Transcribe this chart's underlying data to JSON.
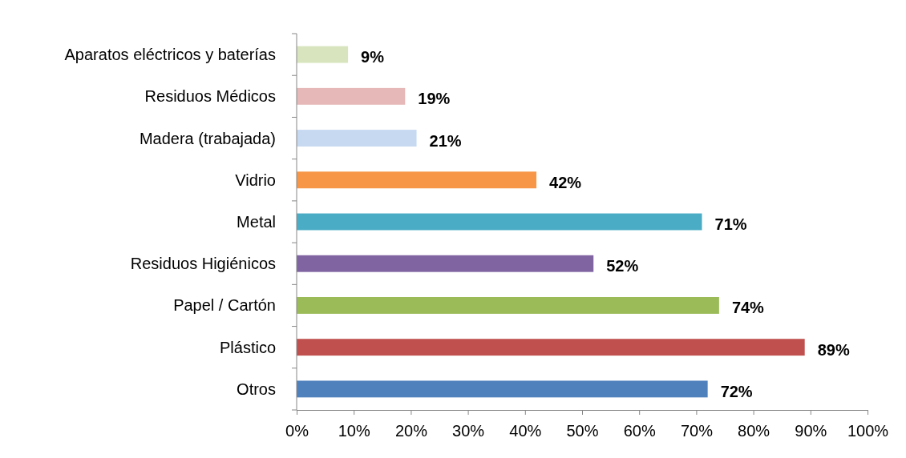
{
  "chart_data": {
    "type": "bar",
    "orientation": "horizontal",
    "categories": [
      "Aparatos eléctricos y baterías",
      "Residuos Médicos",
      "Madera (trabajada)",
      "Vidrio",
      "Metal",
      "Residuos Higiénicos",
      "Papel / Cartón",
      "Plástico",
      "Otros"
    ],
    "values": [
      9,
      19,
      21,
      42,
      71,
      52,
      74,
      89,
      72
    ],
    "colors": [
      "#d7e4bd",
      "#e6b9b8",
      "#c6d9f1",
      "#f79646",
      "#4bacc6",
      "#8064a2",
      "#9bbb59",
      "#c0504d",
      "#4f81bd"
    ],
    "value_labels": [
      "9%",
      "19%",
      "21%",
      "42%",
      "71%",
      "52%",
      "74%",
      "89%",
      "72%"
    ],
    "xlim": [
      0,
      100
    ],
    "xticks": [
      {
        "value": 0,
        "label": "0%"
      },
      {
        "value": 10,
        "label": "10%"
      },
      {
        "value": 20,
        "label": "20%"
      },
      {
        "value": 30,
        "label": "30%"
      },
      {
        "value": 40,
        "label": "40%"
      },
      {
        "value": 50,
        "label": "50%"
      },
      {
        "value": 60,
        "label": "60%"
      },
      {
        "value": 70,
        "label": "70%"
      },
      {
        "value": 80,
        "label": "80%"
      },
      {
        "value": 90,
        "label": "90%"
      },
      {
        "value": 100,
        "label": "100%"
      }
    ],
    "grid": false
  }
}
